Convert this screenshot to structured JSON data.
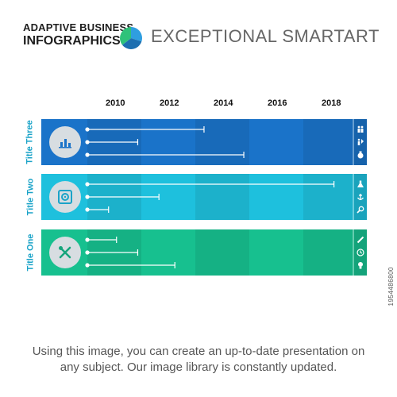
{
  "header": {
    "brand_line1": "ADAPTIVE BUSINESS",
    "brand_line2": "INFOGRAPHICS",
    "title": "EXCEPTIONAL SMARTART"
  },
  "chart_data": {
    "type": "bar",
    "x_ticks": [
      "2010",
      "2012",
      "2014",
      "2016",
      "2018"
    ],
    "xlim": [
      2009,
      2019
    ],
    "rows": [
      {
        "name": "Title Three",
        "category_icon": "bar-chart-icon",
        "color": "#1a73c9",
        "values": [
          2013.4,
          2010.9,
          2014.9
        ],
        "item_icons": [
          "people-icon",
          "people-arrows-icon",
          "money-bag-icon"
        ]
      },
      {
        "name": "Title Two",
        "category_icon": "safe-icon",
        "color": "#1ec0dd",
        "values": [
          2018.3,
          2011.7,
          2009.8
        ],
        "item_icons": [
          "flask-icon",
          "anchor-icon",
          "magnifier-icon"
        ]
      },
      {
        "name": "Title One",
        "category_icon": "tools-icon",
        "color": "#17c08f",
        "values": [
          2010.1,
          2010.9,
          2012.3
        ],
        "item_icons": [
          "pencil-icon",
          "clock-icon",
          "lightbulb-icon"
        ]
      }
    ]
  },
  "footer": {
    "line1": "Using this image, you can create an up-to-date presentation on",
    "line2": "any subject. Our image library is constantly updated.",
    "stock_id": "1954486800"
  }
}
